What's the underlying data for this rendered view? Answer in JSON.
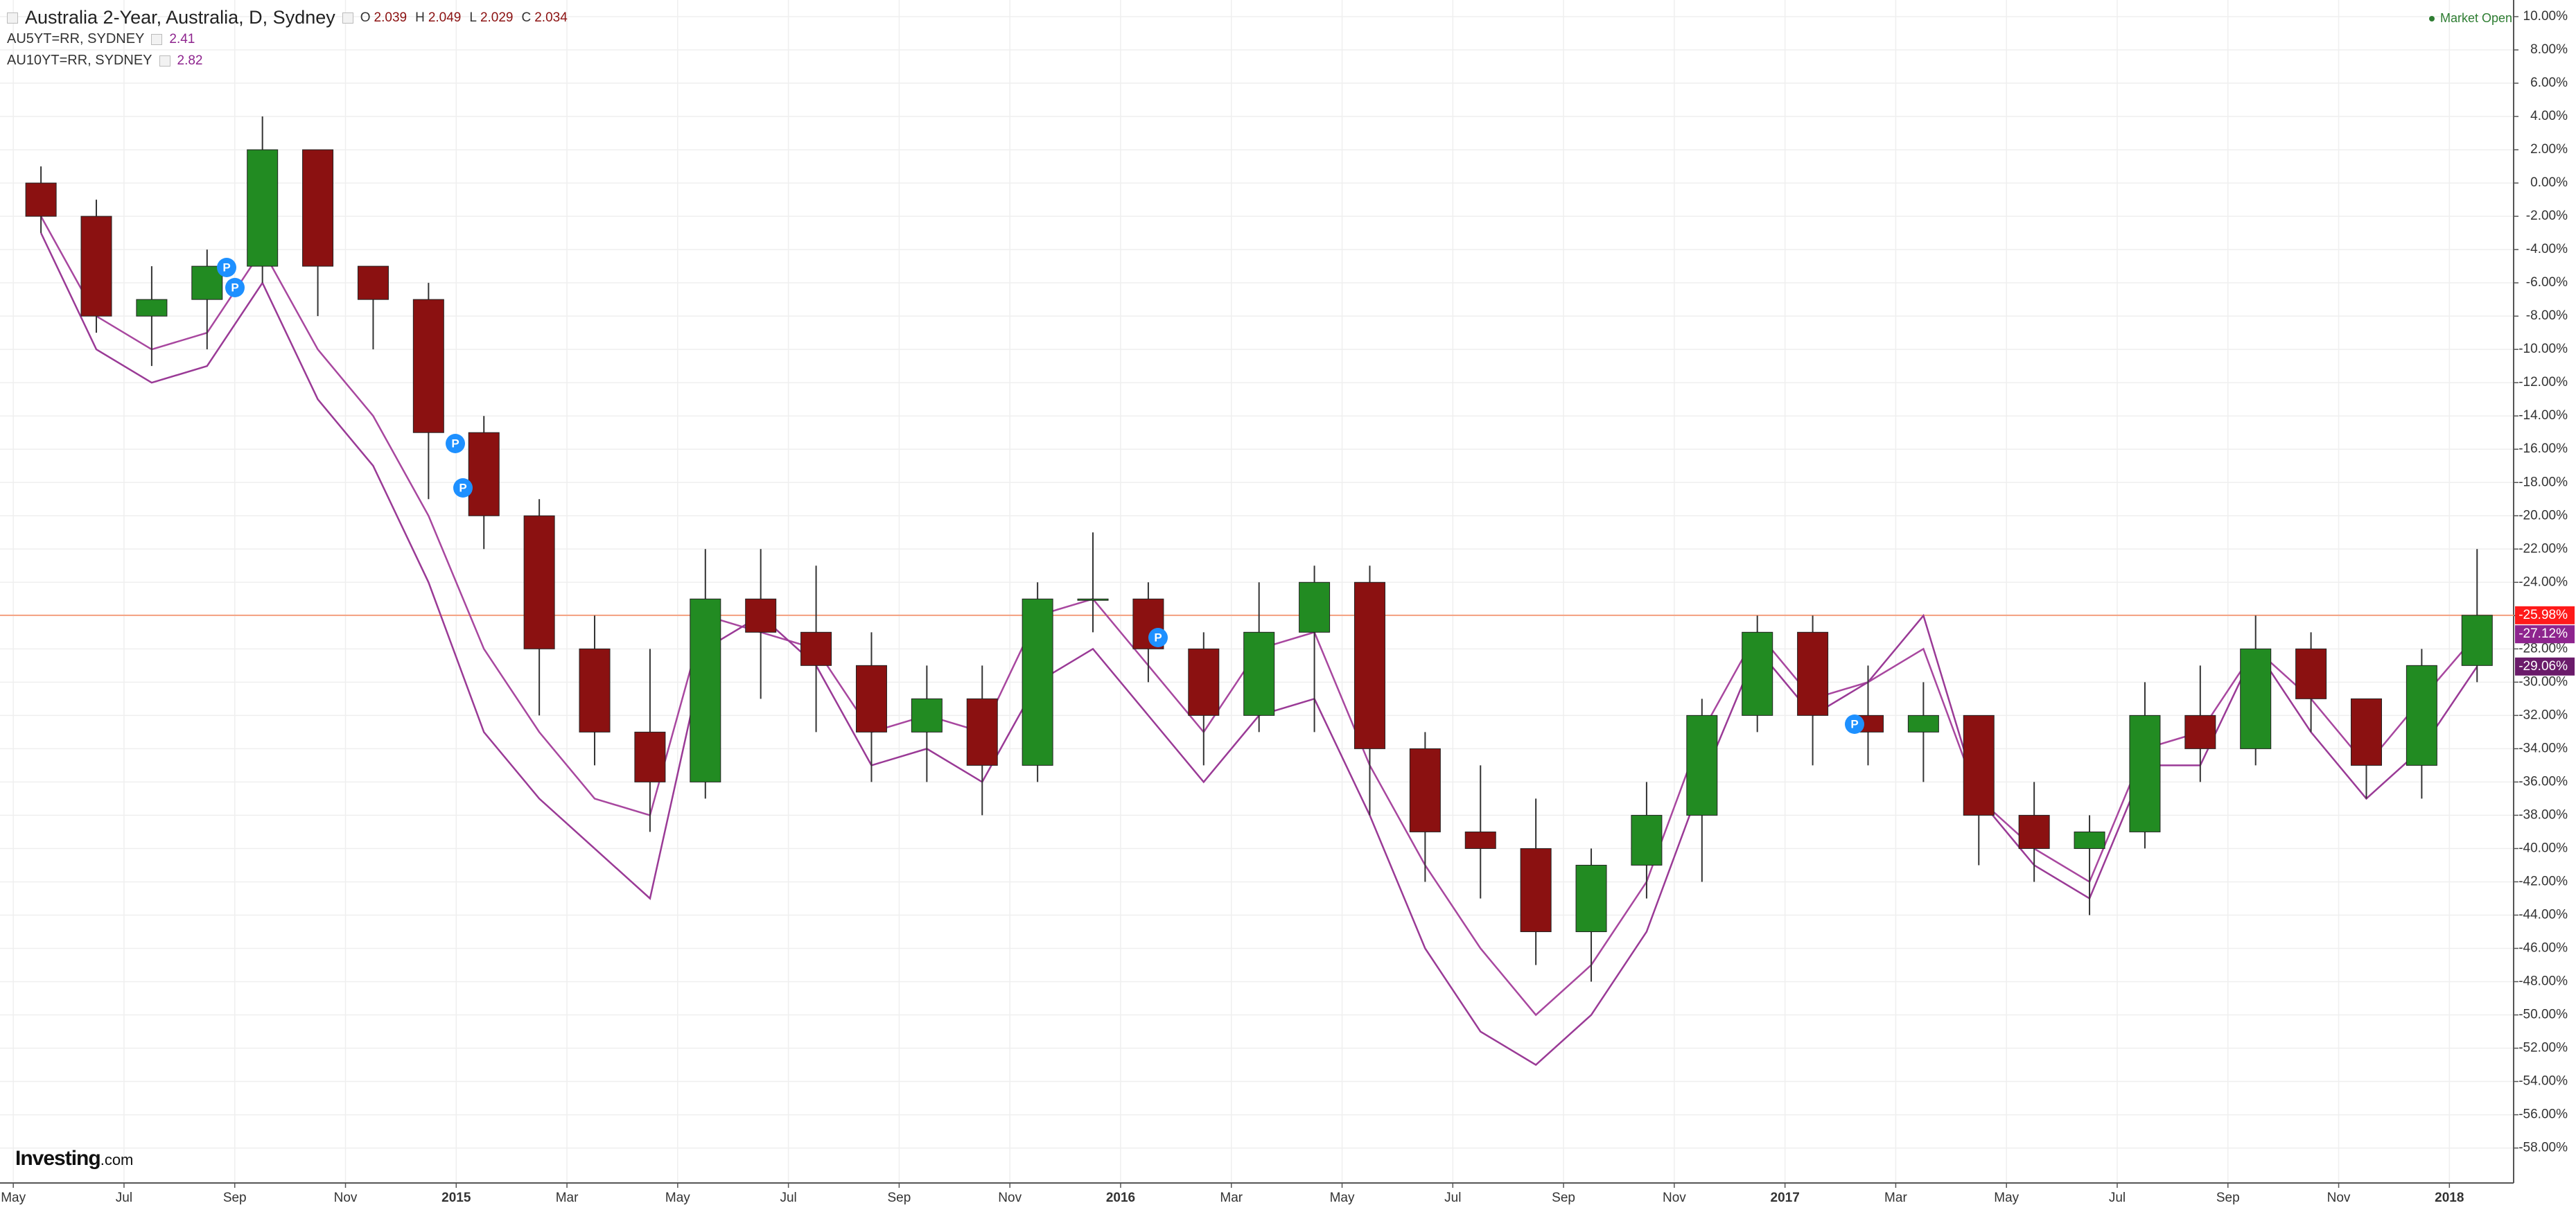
{
  "chart_data": {
    "type": "candlestick",
    "title": "Australia 2-Year, Australia, D, Sydney",
    "ohlc_header": [
      {
        "label": "O",
        "value": 2.039
      },
      {
        "label": "H",
        "value": 2.049
      },
      {
        "label": "L",
        "value": 2.029
      },
      {
        "label": "C",
        "value": 2.034
      }
    ],
    "status": "Market Open",
    "logo": {
      "brand": "Investing",
      "suffix": ".com"
    },
    "event_markers": [
      "P",
      "P",
      "P",
      "P",
      "P",
      "P"
    ],
    "x": [
      0.5,
      1.5,
      2.5,
      3.5,
      4.5,
      5.5,
      6.5,
      7.5,
      8.5,
      9.5,
      10.5,
      11.5,
      12.5,
      13.5,
      14.5,
      15.5,
      16.5,
      17.5,
      18.5,
      19.5,
      20.5,
      21.5,
      22.5,
      23.5,
      24.5,
      25.5,
      26.5,
      27.5,
      28.5,
      29.5,
      30.5,
      31.5,
      32.5,
      33.5,
      34.5,
      35.5,
      36.5,
      37.5,
      38.5,
      39.5,
      40.5,
      41.5,
      42.5,
      43.5,
      44.5
    ],
    "xlim": [
      -0.24,
      45.16
    ],
    "xticks": [
      {
        "value": 0,
        "label": "May"
      },
      {
        "value": 2,
        "label": "Jul"
      },
      {
        "value": 4,
        "label": "Sep"
      },
      {
        "value": 6,
        "label": "Nov"
      },
      {
        "value": 8,
        "label": "2015"
      },
      {
        "value": 10,
        "label": "Mar"
      },
      {
        "value": 12,
        "label": "May"
      },
      {
        "value": 14,
        "label": "Jul"
      },
      {
        "value": 16,
        "label": "Sep"
      },
      {
        "value": 18,
        "label": "Nov"
      },
      {
        "value": 20,
        "label": "2016"
      },
      {
        "value": 22,
        "label": "Mar"
      },
      {
        "value": 24,
        "label": "May"
      },
      {
        "value": 26,
        "label": "Jul"
      },
      {
        "value": 28,
        "label": "Sep"
      },
      {
        "value": 30,
        "label": "Nov"
      },
      {
        "value": 32,
        "label": "2017"
      },
      {
        "value": 34,
        "label": "Mar"
      },
      {
        "value": 36,
        "label": "May"
      },
      {
        "value": 38,
        "label": "Jul"
      },
      {
        "value": 40,
        "label": "Sep"
      },
      {
        "value": 42,
        "label": "Nov"
      },
      {
        "value": 44,
        "label": "2018"
      }
    ],
    "ylim": [
      -60.1,
      11
    ],
    "yticks": [
      {
        "value": 10,
        "label": "10.00%"
      },
      {
        "value": 8,
        "label": "8.00%"
      },
      {
        "value": 6,
        "label": "6.00%"
      },
      {
        "value": 4,
        "label": "4.00%"
      },
      {
        "value": 2,
        "label": "2.00%"
      },
      {
        "value": 0,
        "label": "0.00%"
      },
      {
        "value": -2,
        "label": "-2.00%"
      },
      {
        "value": -4,
        "label": "-4.00%"
      },
      {
        "value": -6,
        "label": "-6.00%"
      },
      {
        "value": -8,
        "label": "-8.00%"
      },
      {
        "value": -10,
        "label": "-10.00%"
      },
      {
        "value": -12,
        "label": "-12.00%"
      },
      {
        "value": -14,
        "label": "-14.00%"
      },
      {
        "value": -16,
        "label": "-16.00%"
      },
      {
        "value": -18,
        "label": "-18.00%"
      },
      {
        "value": -20,
        "label": "-20.00%"
      },
      {
        "value": -22,
        "label": "-22.00%"
      },
      {
        "value": -24,
        "label": "-24.00%"
      },
      {
        "value": -26,
        "label": "-26.00%"
      },
      {
        "value": -28,
        "label": "-28.00%"
      },
      {
        "value": -30,
        "label": "-30.00%"
      },
      {
        "value": -32,
        "label": "-32.00%"
      },
      {
        "value": -34,
        "label": "-34.00%"
      },
      {
        "value": -36,
        "label": "-36.00%"
      },
      {
        "value": -38,
        "label": "-38.00%"
      },
      {
        "value": -40,
        "label": "-40.00%"
      },
      {
        "value": -42,
        "label": "-42.00%"
      },
      {
        "value": -44,
        "label": "-44.00%"
      },
      {
        "value": -46,
        "label": "-46.00%"
      },
      {
        "value": -48,
        "label": "-48.00%"
      },
      {
        "value": -50,
        "label": "-50.00%"
      },
      {
        "value": -52,
        "label": "-52.00%"
      },
      {
        "value": -54,
        "label": "-54.00%"
      },
      {
        "value": -56,
        "label": "-56.00%"
      },
      {
        "value": -58,
        "label": "-58.00%"
      }
    ],
    "grid": true,
    "candles": {
      "up_color": "#228b22",
      "down_color": "#8b1111",
      "open": [
        0,
        -2,
        -8,
        -7,
        -5,
        2,
        -5,
        -7,
        -15,
        -20,
        -28,
        -33,
        -36,
        -25,
        -27,
        -29,
        -33,
        -31,
        -35,
        -25,
        -25,
        -28,
        -32,
        -27,
        -24,
        -34,
        -39,
        -40,
        -45,
        -41,
        -38,
        -32,
        -27,
        -32,
        -33,
        -32,
        -38,
        -40,
        -39,
        -32,
        -34,
        -28,
        -31,
        -35,
        -29
      ],
      "high": [
        1,
        -1,
        -5,
        -4,
        4,
        2,
        -5,
        -6,
        -14,
        -19,
        -26,
        -28,
        -22,
        -22,
        -23,
        -27,
        -29,
        -29,
        -24,
        -21,
        -24,
        -27,
        -24,
        -23,
        -23,
        -33,
        -35,
        -37,
        -40,
        -36,
        -31,
        -26,
        -26,
        -29,
        -30,
        -32,
        -36,
        -38,
        -30,
        -29,
        -26,
        -27,
        -31,
        -28,
        -22
      ],
      "low": [
        -3,
        -9,
        -11,
        -10,
        -6,
        -8,
        -10,
        -19,
        -22,
        -32,
        -35,
        -39,
        -37,
        -31,
        -33,
        -36,
        -36,
        -38,
        -36,
        -27,
        -30,
        -35,
        -33,
        -33,
        -38,
        -42,
        -43,
        -47,
        -48,
        -43,
        -42,
        -33,
        -35,
        -35,
        -36,
        -41,
        -42,
        -44,
        -40,
        -36,
        -35,
        -33,
        -37,
        -37,
        -30
      ],
      "close": [
        -2,
        -8,
        -7,
        -5,
        2,
        -5,
        -7,
        -15,
        -20,
        -28,
        -33,
        -36,
        -25,
        -27,
        -29,
        -33,
        -31,
        -35,
        -25,
        -25,
        -28,
        -32,
        -27,
        -24,
        -34,
        -39,
        -40,
        -45,
        -41,
        -38,
        -32,
        -27,
        -32,
        -33,
        -32,
        -38,
        -40,
        -39,
        -32,
        -34,
        -28,
        -31,
        -35,
        -29,
        -25.98
      ],
      "last_label": "-25.98%",
      "last_label_color": "#ff1a1a",
      "price_line_color": "#f4a080"
    },
    "series": [
      {
        "name": "AU5YT=RR, SYDNEY",
        "price": 2.41,
        "color": "#a8479f",
        "label_color": "#8e248e",
        "last_label": "-27.12%",
        "values": [
          -2,
          -8,
          -10,
          -9,
          -4,
          -10,
          -14,
          -20,
          -28,
          -33,
          -37,
          -38,
          -26,
          -27,
          -28,
          -33,
          -32,
          -33,
          -26,
          -25,
          -29,
          -33,
          -28,
          -27,
          -35,
          -41,
          -46,
          -50,
          -47,
          -42,
          -33,
          -27,
          -31,
          -30,
          -28,
          -37,
          -40,
          -42,
          -34,
          -33,
          -28,
          -31,
          -35,
          -31,
          -27.12
        ]
      },
      {
        "name": "AU10YT=RR, SYDNEY",
        "price": 2.82,
        "color": "#9a3a96",
        "label_color": "#6a1b6a",
        "last_label": "-29.06%",
        "values": [
          -3,
          -10,
          -12,
          -11,
          -6,
          -13,
          -17,
          -24,
          -33,
          -37,
          -40,
          -43,
          -28,
          -26,
          -29,
          -35,
          -34,
          -36,
          -30,
          -28,
          -32,
          -36,
          -32,
          -31,
          -38,
          -46,
          -51,
          -53,
          -50,
          -45,
          -36,
          -28,
          -32,
          -30,
          -26,
          -37,
          -41,
          -43,
          -35,
          -35,
          -28,
          -33,
          -37,
          -34,
          -29.06
        ]
      }
    ]
  }
}
